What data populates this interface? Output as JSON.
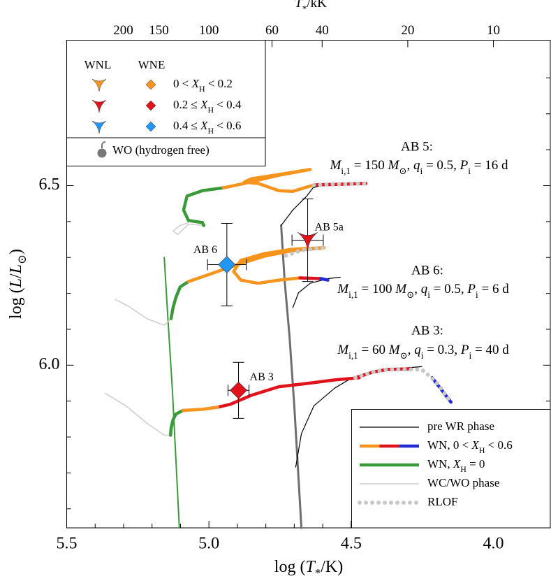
{
  "chart_data": {
    "type": "line",
    "x_label": [
      {
        "t": "log ("
      },
      {
        "t": "T",
        "s": "i"
      },
      {
        "t": "*",
        "s": "sub"
      },
      {
        "t": "/K)"
      }
    ],
    "y_label": [
      {
        "t": "log ("
      },
      {
        "t": "L",
        "s": "i"
      },
      {
        "t": "/"
      },
      {
        "t": "L",
        "s": "i"
      },
      {
        "t": "⊙",
        "s": "sub"
      },
      {
        "t": ")"
      }
    ],
    "x2_label": [
      {
        "t": "T",
        "s": "i"
      },
      {
        "t": "*",
        "s": "sub"
      },
      {
        "t": "/kK"
      }
    ],
    "xlim": [
      5.5,
      3.8
    ],
    "ylim": [
      5.547,
      6.905
    ],
    "xticks": [
      {
        "value": 5.5,
        "label": "5.5"
      },
      {
        "value": 5.0,
        "label": "5.0"
      },
      {
        "value": 4.5,
        "label": "4.5"
      },
      {
        "value": 4.0,
        "label": "4.0"
      }
    ],
    "xminorticks": [
      5.4,
      5.3,
      5.2,
      5.1,
      4.9,
      4.8,
      4.7,
      4.6,
      4.4,
      4.3,
      4.2,
      4.1,
      3.9
    ],
    "yticks": [
      {
        "value": 6.0,
        "label": "6.0"
      },
      {
        "value": 6.5,
        "label": "6.5"
      }
    ],
    "yminorticks": [
      5.6,
      5.7,
      5.8,
      5.9,
      6.1,
      6.2,
      6.3,
      6.4,
      6.6,
      6.7,
      6.8
    ],
    "x2ticks": [
      200,
      150,
      100,
      60,
      40,
      20,
      10
    ],
    "grid": false,
    "series": [
      {
        "style": "zams",
        "color": "#6e6e6e",
        "x": [
          4.746,
          4.734,
          4.717,
          4.7,
          4.675
        ],
        "y": [
          6.389,
          6.237,
          6.082,
          5.887,
          5.547
        ]
      },
      {
        "style": "hezams",
        "color": "#3a9a3a",
        "x": [
          5.157,
          5.145,
          5.128,
          5.104
        ],
        "y": [
          6.3,
          6.14,
          5.926,
          5.547
        ]
      },
      {
        "style": "pre",
        "color": "#000000",
        "x": [
          4.746,
          4.705,
          4.656,
          4.634,
          4.582,
          4.509,
          4.448
        ],
        "y": [
          6.389,
          6.432,
          6.471,
          6.494,
          6.506,
          6.506,
          6.506
        ]
      },
      {
        "style": "wn",
        "color": "#e0121b",
        "x": [
          4.448,
          4.534,
          4.631
        ],
        "y": [
          6.506,
          6.504,
          6.502
        ]
      },
      {
        "style": "rlof",
        "color": "#c8c8c8",
        "x": [
          4.631,
          4.582,
          4.534,
          4.448
        ],
        "y": [
          6.502,
          6.504,
          6.504,
          6.506
        ]
      },
      {
        "style": "wn",
        "color": "#f7941d",
        "x": [
          4.631,
          4.705,
          4.754,
          4.827,
          4.876,
          4.852,
          4.754,
          4.644,
          4.754,
          4.876,
          4.949
        ],
        "y": [
          6.502,
          6.484,
          6.486,
          6.506,
          6.51,
          6.519,
          6.531,
          6.545,
          6.529,
          6.506,
          6.494
        ]
      },
      {
        "style": "wnh0",
        "color": "#3a9a3a",
        "x": [
          4.949,
          5.023,
          5.077,
          5.089,
          5.072,
          5.023,
          5.018
        ],
        "y": [
          6.494,
          6.486,
          6.471,
          6.432,
          6.403,
          6.397,
          6.389
        ]
      },
      {
        "style": "wc",
        "color": "#cfcfcf",
        "x": [
          5.018,
          5.072,
          5.109,
          5.126,
          5.101,
          5.072
        ],
        "y": [
          6.389,
          6.393,
          6.364,
          6.374,
          6.389,
          6.397
        ]
      },
      {
        "style": "pre",
        "color": "#000000",
        "x": [
          4.705,
          4.685,
          4.644,
          4.582,
          4.538
        ],
        "y": [
          6.16,
          6.202,
          6.228,
          6.241,
          6.245
        ]
      },
      {
        "style": "wn",
        "color": "#f7941d",
        "x": [
          4.68,
          4.754,
          4.827,
          4.888,
          4.913,
          4.888,
          4.803,
          4.705,
          4.595,
          4.705,
          4.803,
          4.901,
          4.998,
          5.072
        ],
        "y": [
          6.243,
          6.237,
          6.228,
          6.237,
          6.261,
          6.292,
          6.311,
          6.323,
          6.327,
          6.319,
          6.304,
          6.28,
          6.253,
          6.233
        ]
      },
      {
        "style": "wn",
        "color": "#e0121b",
        "x": [
          4.68,
          4.607
        ],
        "y": [
          6.243,
          6.241
        ]
      },
      {
        "style": "wn",
        "color": "#1f2bd6",
        "x": [
          4.607,
          4.582
        ],
        "y": [
          6.241,
          6.237
        ]
      },
      {
        "style": "rlof",
        "color": "#c8c8c8",
        "x": [
          4.729,
          4.68,
          4.631,
          4.595
        ],
        "y": [
          6.305,
          6.319,
          6.325,
          6.327
        ]
      },
      {
        "style": "wnh0",
        "color": "#3a9a3a",
        "x": [
          5.072,
          5.101,
          5.116,
          5.126,
          5.133
        ],
        "y": [
          6.233,
          6.218,
          6.189,
          6.16,
          6.13
        ]
      },
      {
        "style": "wc",
        "color": "#cfcfcf",
        "x": [
          5.133,
          5.157,
          5.219,
          5.28,
          5.329
        ],
        "y": [
          6.13,
          6.111,
          6.13,
          6.163,
          6.183
        ]
      },
      {
        "style": "pre",
        "color": "#000000",
        "x": [
          4.695,
          4.675,
          4.631,
          4.558,
          4.497,
          4.411,
          4.313,
          4.252
        ],
        "y": [
          5.716,
          5.809,
          5.887,
          5.936,
          5.965,
          5.984,
          5.992,
          5.996
        ]
      },
      {
        "style": "wn",
        "color": "#e0121b",
        "x": [
          4.472,
          4.558,
          4.656,
          4.754,
          4.852,
          4.925,
          4.969
        ],
        "y": [
          5.965,
          5.959,
          5.949,
          5.94,
          5.916,
          5.891,
          5.883
        ]
      },
      {
        "style": "wn",
        "color": "#e0121b",
        "x": [
          4.485,
          4.423,
          4.375,
          4.289
        ],
        "y": [
          5.965,
          5.981,
          5.988,
          5.99
        ]
      },
      {
        "style": "wn",
        "color": "#1f2bd6",
        "x": [
          4.215,
          4.149
        ],
        "y": [
          5.965,
          5.897
        ]
      },
      {
        "style": "rlof",
        "color": "#c8c8c8",
        "x": [
          4.485,
          4.423,
          4.375,
          4.313,
          4.252,
          4.203,
          4.149
        ],
        "y": [
          5.965,
          5.981,
          5.988,
          5.988,
          5.988,
          5.955,
          5.897
        ]
      },
      {
        "style": "wn",
        "color": "#f7941d",
        "x": [
          4.969,
          5.023,
          5.091
        ],
        "y": [
          5.883,
          5.877,
          5.874
        ]
      },
      {
        "style": "wnh0",
        "color": "#3a9a3a",
        "x": [
          5.091,
          5.116,
          5.126,
          5.133,
          5.135
        ],
        "y": [
          5.874,
          5.864,
          5.848,
          5.825,
          5.805
        ]
      },
      {
        "style": "wc",
        "color": "#cfcfcf",
        "x": [
          5.135,
          5.157,
          5.219,
          5.292,
          5.365
        ],
        "y": [
          5.805,
          5.805,
          5.839,
          5.887,
          5.922
        ]
      }
    ],
    "stars": [
      {
        "label": "AB 5a",
        "marker": "WNL",
        "color": "#e0121b",
        "x": 4.653,
        "y": 6.348,
        "xerr": 0.055,
        "yerr": 0.115
      },
      {
        "label": "AB 6",
        "marker": "WNE",
        "color": "#2196f3",
        "x": 4.937,
        "y": 6.28,
        "xerr": 0.068,
        "yerr": 0.115
      },
      {
        "label": "AB 3",
        "marker": "WNE",
        "color": "#e0121b",
        "x": 4.896,
        "y": 5.93,
        "xerr": 0.037,
        "yerr": 0.078
      }
    ],
    "annotations": [
      {
        "title": "AB 5:",
        "text": [
          {
            "t": "M",
            "s": "i"
          },
          {
            "t": "i,1",
            "s": "sub"
          },
          {
            "t": " = 150 "
          },
          {
            "t": "M",
            "s": "i"
          },
          {
            "t": "⊙",
            "s": "sub"
          },
          {
            "t": ", "
          },
          {
            "t": "q",
            "s": "i"
          },
          {
            "t": "i",
            "s": "sub"
          },
          {
            "t": " = 0.5, "
          },
          {
            "t": "P",
            "s": "i"
          },
          {
            "t": "i",
            "s": "sub"
          },
          {
            "t": " = 16 d"
          }
        ]
      },
      {
        "title": "AB 6:",
        "text": [
          {
            "t": "M",
            "s": "i"
          },
          {
            "t": "i,1",
            "s": "sub"
          },
          {
            "t": " = 100 "
          },
          {
            "t": "M",
            "s": "i"
          },
          {
            "t": "⊙",
            "s": "sub"
          },
          {
            "t": ", "
          },
          {
            "t": "q",
            "s": "i"
          },
          {
            "t": "i",
            "s": "sub"
          },
          {
            "t": " = 0.5, "
          },
          {
            "t": "P",
            "s": "i"
          },
          {
            "t": "i",
            "s": "sub"
          },
          {
            "t": " = 6 d"
          }
        ]
      },
      {
        "title": "AB 3:",
        "text": [
          {
            "t": "M",
            "s": "i"
          },
          {
            "t": "i,1",
            "s": "sub"
          },
          {
            "t": " = 60 "
          },
          {
            "t": "M",
            "s": "i"
          },
          {
            "t": "⊙",
            "s": "sub"
          },
          {
            "t": ", "
          },
          {
            "t": "q",
            "s": "i"
          },
          {
            "t": "i",
            "s": "sub"
          },
          {
            "t": " = 0.3, "
          },
          {
            "t": "P",
            "s": "i"
          },
          {
            "t": "i",
            "s": "sub"
          },
          {
            "t": " = 40 d"
          }
        ]
      }
    ],
    "inset": {
      "headers": [
        "WNL",
        "WNE"
      ],
      "rows": [
        {
          "color": "#f7941d",
          "label": [
            {
              "t": "0 < "
            },
            {
              "t": "X",
              "s": "i"
            },
            {
              "t": "H",
              "s": "sub"
            },
            {
              "t": " < 0.2"
            }
          ]
        },
        {
          "color": "#e0121b",
          "label": [
            {
              "t": "0.2 ≤ "
            },
            {
              "t": "X",
              "s": "i"
            },
            {
              "t": "H",
              "s": "sub"
            },
            {
              "t": " < 0.4"
            }
          ]
        },
        {
          "color": "#2196f3",
          "label": [
            {
              "t": "0.4 ≤ "
            },
            {
              "t": "X",
              "s": "i"
            },
            {
              "t": "H",
              "s": "sub"
            },
            {
              "t": " < 0.6"
            }
          ]
        }
      ],
      "wo_label": "WO (hydrogen free)"
    },
    "legend": {
      "position": "lower right",
      "entries": [
        {
          "style": "pre",
          "colors": [
            "#000000"
          ],
          "label": [
            {
              "t": "pre WR phase"
            }
          ]
        },
        {
          "style": "wn",
          "colors": [
            "#f7941d",
            "#e0121b",
            "#1f2bd6"
          ],
          "label": [
            {
              "t": "WN,  0 < "
            },
            {
              "t": "X",
              "s": "i"
            },
            {
              "t": "H",
              "s": "sub"
            },
            {
              "t": " < 0.6"
            }
          ]
        },
        {
          "style": "wnh0",
          "colors": [
            "#3a9a3a"
          ],
          "label": [
            {
              "t": "WN,  "
            },
            {
              "t": "X",
              "s": "i"
            },
            {
              "t": "H",
              "s": "sub"
            },
            {
              "t": " = 0"
            }
          ]
        },
        {
          "style": "wc",
          "colors": [
            "#cfcfcf"
          ],
          "label": [
            {
              "t": "WC/WO phase"
            }
          ]
        },
        {
          "style": "rlof",
          "colors": [
            "#c8c8c8"
          ],
          "label": [
            {
              "t": "RLOF"
            }
          ]
        }
      ]
    }
  }
}
